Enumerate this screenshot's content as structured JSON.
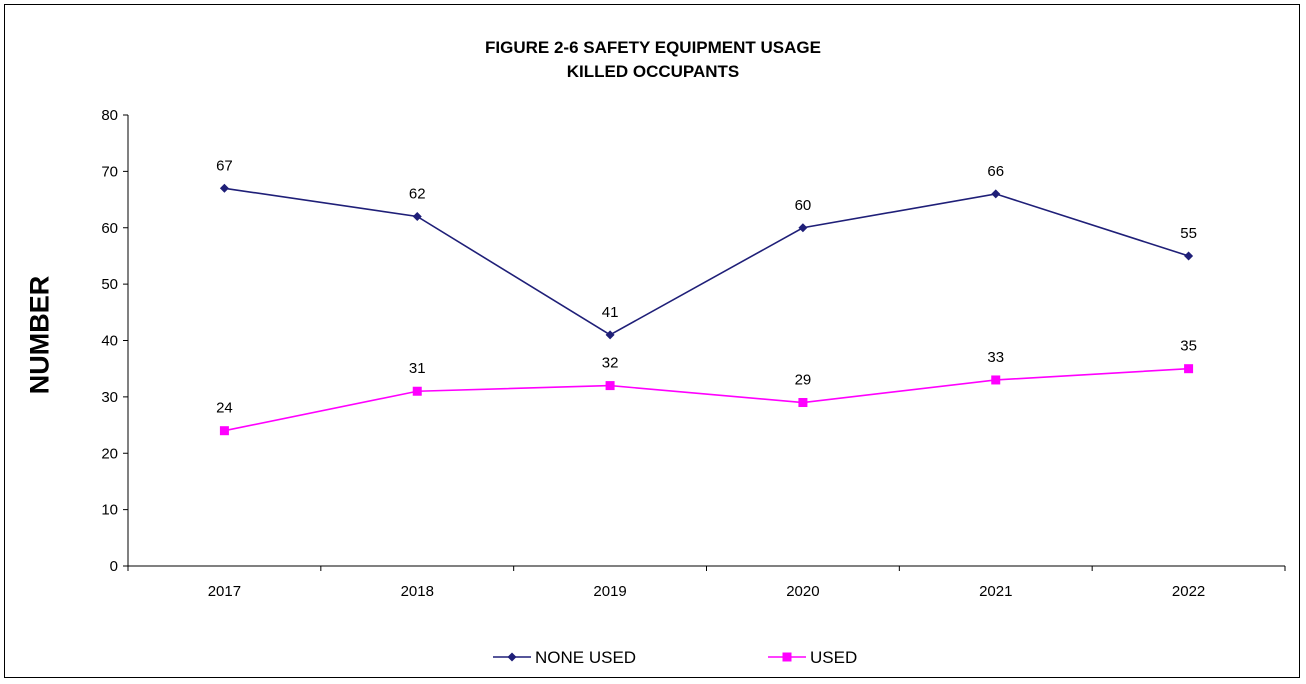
{
  "chart_data": {
    "type": "line",
    "title": "FIGURE 2-6 SAFETY EQUIPMENT USAGE",
    "subtitle": "KILLED OCCUPANTS",
    "xlabel": "",
    "ylabel": "NUMBER",
    "categories": [
      "2017",
      "2018",
      "2019",
      "2020",
      "2021",
      "2022"
    ],
    "ylim": [
      0,
      80
    ],
    "yticks": [
      0,
      10,
      20,
      30,
      40,
      50,
      60,
      70,
      80
    ],
    "grid": false,
    "legend_position": "bottom",
    "series": [
      {
        "name": "NONE USED",
        "values": [
          67,
          62,
          41,
          60,
          66,
          55
        ],
        "color": "#1f1f78",
        "marker": "diamond"
      },
      {
        "name": "USED",
        "values": [
          24,
          31,
          32,
          29,
          33,
          35
        ],
        "color": "#ff00ff",
        "marker": "square"
      }
    ]
  }
}
